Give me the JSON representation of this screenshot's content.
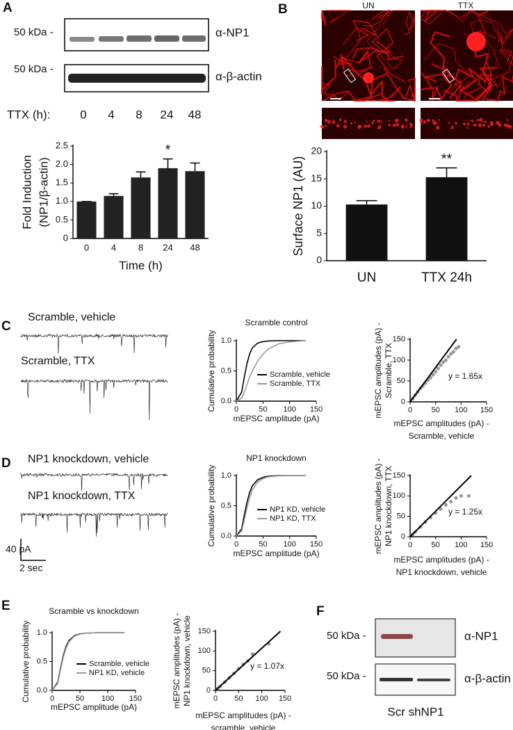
{
  "panels": [
    "A",
    "B",
    "C",
    "D",
    "E",
    "F"
  ],
  "blot_A": {
    "rows": [
      {
        "marker": "50 kDa -",
        "label": "α-NP1"
      },
      {
        "marker": "50 kDa -",
        "label": "α-β-actin"
      }
    ],
    "lane_title": "TTX (h):",
    "lanes": [
      "0",
      "4",
      "8",
      "24",
      "48"
    ]
  },
  "images_B": {
    "labels": [
      "UN",
      "TTX"
    ]
  },
  "traces": {
    "C": [
      "Scramble, vehicle",
      "Scramble, TTX"
    ],
    "D": [
      "NP1 knockdown, vehicle",
      "NP1 knockdown, TTX"
    ],
    "scale_y": "40 pA",
    "scale_x": "2 sec"
  },
  "blot_F": {
    "rows": [
      {
        "marker": "50 kDa -",
        "label": "α-NP1"
      },
      {
        "marker": "50 kDa -",
        "label": "α-β-actin"
      }
    ],
    "lanes": "Scr shNP1"
  },
  "chart_data": [
    {
      "type": "bar",
      "categories": [
        "0",
        "4",
        "8",
        "24",
        "48"
      ],
      "values": [
        1.0,
        1.15,
        1.65,
        1.9,
        1.82
      ],
      "errors": [
        0.0,
        0.06,
        0.15,
        0.25,
        0.22
      ],
      "color": "#222222",
      "ylim": [
        0,
        2.5
      ],
      "yticks": [
        0,
        0.5,
        {
          "value": 1,
          "label": "1.0"
        },
        1.5,
        {
          "value": 2,
          "label": "2.0"
        },
        2.5
      ],
      "xlabel": "Time (h)",
      "ylabel": [
        "Fold Induction",
        "(NP1/β-actin)"
      ],
      "annotations": [
        {
          "text": "*",
          "category": "24"
        }
      ]
    },
    {
      "type": "bar",
      "categories": [
        "UN",
        "TTX 24h"
      ],
      "values": [
        10.3,
        15.3
      ],
      "errors": [
        0.7,
        1.7
      ],
      "color": "#111111",
      "ylim": [
        0,
        20
      ],
      "yticks": [
        0,
        5,
        10,
        15,
        20
      ],
      "ylabel": [
        "Surface NP1 (AU)"
      ],
      "annotations": [
        {
          "text": "**",
          "category": "TTX 24h"
        }
      ]
    },
    {
      "type": "line",
      "title": "Scramble control",
      "xlabel": "mEPSC amplitude (pA)",
      "ylabel": [
        "Cumulative probability"
      ],
      "x": [
        0,
        10,
        15,
        20,
        25,
        30,
        40,
        50,
        60,
        80,
        100,
        130
      ],
      "xlim": [
        0,
        150
      ],
      "xticks": [
        0,
        50,
        100,
        150
      ],
      "ylim": [
        0,
        1
      ],
      "yticks": [
        {
          "value": 0,
          "label": "0.0"
        },
        0.5,
        {
          "value": 1,
          "label": "1.0"
        }
      ],
      "legend": "lower right",
      "series": [
        {
          "name": "Scramble, vehicle",
          "color": "#000000",
          "values": [
            0,
            0.15,
            0.4,
            0.62,
            0.78,
            0.88,
            0.96,
            0.985,
            0.995,
            1,
            1,
            1
          ]
        },
        {
          "name": "Scramble, TTX",
          "color": "#999999",
          "values": [
            0,
            0.05,
            0.15,
            0.28,
            0.4,
            0.5,
            0.66,
            0.78,
            0.86,
            0.95,
            0.98,
            1
          ]
        }
      ]
    },
    {
      "type": "scatter",
      "xlabel": [
        "mEPSC amplitudes (pA) -",
        "Scramble, vehicle"
      ],
      "ylabel": [
        "mEPSC amplitudes (pA) -",
        "Scramble, TTX"
      ],
      "xlim": [
        0,
        150
      ],
      "xticks": [
        0,
        50,
        100,
        150
      ],
      "ylim": [
        0,
        150
      ],
      "yticks": [
        0,
        50,
        100,
        150
      ],
      "color": "#999999",
      "x": [
        5,
        10,
        15,
        20,
        25,
        30,
        35,
        40,
        45,
        50,
        55,
        60,
        65,
        70,
        75,
        80,
        85,
        90,
        95
      ],
      "y": [
        8,
        16,
        24,
        32,
        38,
        45,
        52,
        58,
        65,
        72,
        80,
        88,
        95,
        100,
        108,
        115,
        120,
        128,
        132
      ],
      "fit": {
        "slope": 1.65,
        "label": "y = 1.65x"
      }
    },
    {
      "type": "line",
      "title": "NP1 knockdown",
      "xlabel": "mEPSC amplitude (pA)",
      "ylabel": [
        "Cumulative probability"
      ],
      "x": [
        0,
        10,
        15,
        20,
        25,
        30,
        40,
        50,
        60,
        80,
        100,
        130
      ],
      "xlim": [
        0,
        150
      ],
      "xticks": [
        0,
        50,
        100,
        150
      ],
      "ylim": [
        0,
        1
      ],
      "yticks": [
        {
          "value": 0,
          "label": "0.0"
        },
        0.5,
        {
          "value": 1,
          "label": "1.0"
        }
      ],
      "legend": "lower right",
      "series": [
        {
          "name": "NP1 KD, vehicle",
          "color": "#000000",
          "values": [
            0,
            0.12,
            0.35,
            0.56,
            0.72,
            0.83,
            0.93,
            0.97,
            0.99,
            1,
            1,
            1
          ]
        },
        {
          "name": "NP1 KD, TTX",
          "color": "#999999",
          "values": [
            0,
            0.08,
            0.27,
            0.47,
            0.63,
            0.76,
            0.89,
            0.95,
            0.98,
            0.995,
            1,
            1
          ]
        }
      ]
    },
    {
      "type": "scatter",
      "xlabel": [
        "mEPSC amplitudes (pA) -",
        "NP1 knockdown, vehicle"
      ],
      "ylabel": [
        "mEPSC amplitudes (pA) -",
        "NP1 knockdown, TTX"
      ],
      "xlim": [
        0,
        150
      ],
      "xticks": [
        0,
        50,
        100,
        150
      ],
      "ylim": [
        0,
        150
      ],
      "yticks": [
        0,
        50,
        100,
        150
      ],
      "color": "#999999",
      "x": [
        5,
        10,
        20,
        30,
        40,
        50,
        60,
        70,
        80,
        90,
        100,
        115
      ],
      "y": [
        6,
        12,
        24,
        36,
        47,
        58,
        68,
        78,
        86,
        95,
        100,
        100
      ],
      "fit": {
        "slope": 1.25,
        "label": "y = 1.25x"
      }
    },
    {
      "type": "line",
      "title": "Scramble vs knockdown",
      "xlabel": "mEPSC amplitude (pA)",
      "ylabel": [
        "Cumulative probability"
      ],
      "x": [
        0,
        10,
        15,
        20,
        25,
        30,
        40,
        50,
        60,
        80,
        100,
        130
      ],
      "xlim": [
        0,
        150
      ],
      "xticks": [
        0,
        50,
        100,
        150
      ],
      "ylim": [
        0,
        1
      ],
      "yticks": [
        {
          "value": 0,
          "label": "0.0"
        },
        0.5,
        {
          "value": 1,
          "label": "1.0"
        }
      ],
      "legend": "lower right",
      "series": [
        {
          "name": "Scramble, vehicle",
          "color": "#000000",
          "values": [
            0,
            0.14,
            0.38,
            0.6,
            0.76,
            0.86,
            0.95,
            0.98,
            0.99,
            1,
            1,
            1
          ]
        },
        {
          "name": "NP1 KD, vehicle",
          "color": "#999999",
          "values": [
            0,
            0.12,
            0.35,
            0.57,
            0.73,
            0.84,
            0.94,
            0.975,
            0.99,
            1,
            1,
            1
          ]
        }
      ]
    },
    {
      "type": "scatter",
      "xlabel": [
        "mEPSC amplitudes (pA) -",
        "scramble, vehicle"
      ],
      "ylabel": [
        "mEPSC amplitudes (pA) -",
        "NP1 knockdown, vehicle"
      ],
      "xlim": [
        0,
        150
      ],
      "xticks": [
        0,
        50,
        100,
        150
      ],
      "ylim": [
        0,
        150
      ],
      "yticks": [
        0,
        50,
        100,
        150
      ],
      "color": "#999999",
      "x": [
        5,
        10,
        20,
        30,
        40,
        50,
        60,
        70,
        80,
        115
      ],
      "y": [
        5,
        10,
        21,
        32,
        43,
        55,
        66,
        75,
        92,
        118
      ],
      "fit": {
        "slope": 1.07,
        "label": "y = 1.07x"
      }
    }
  ]
}
